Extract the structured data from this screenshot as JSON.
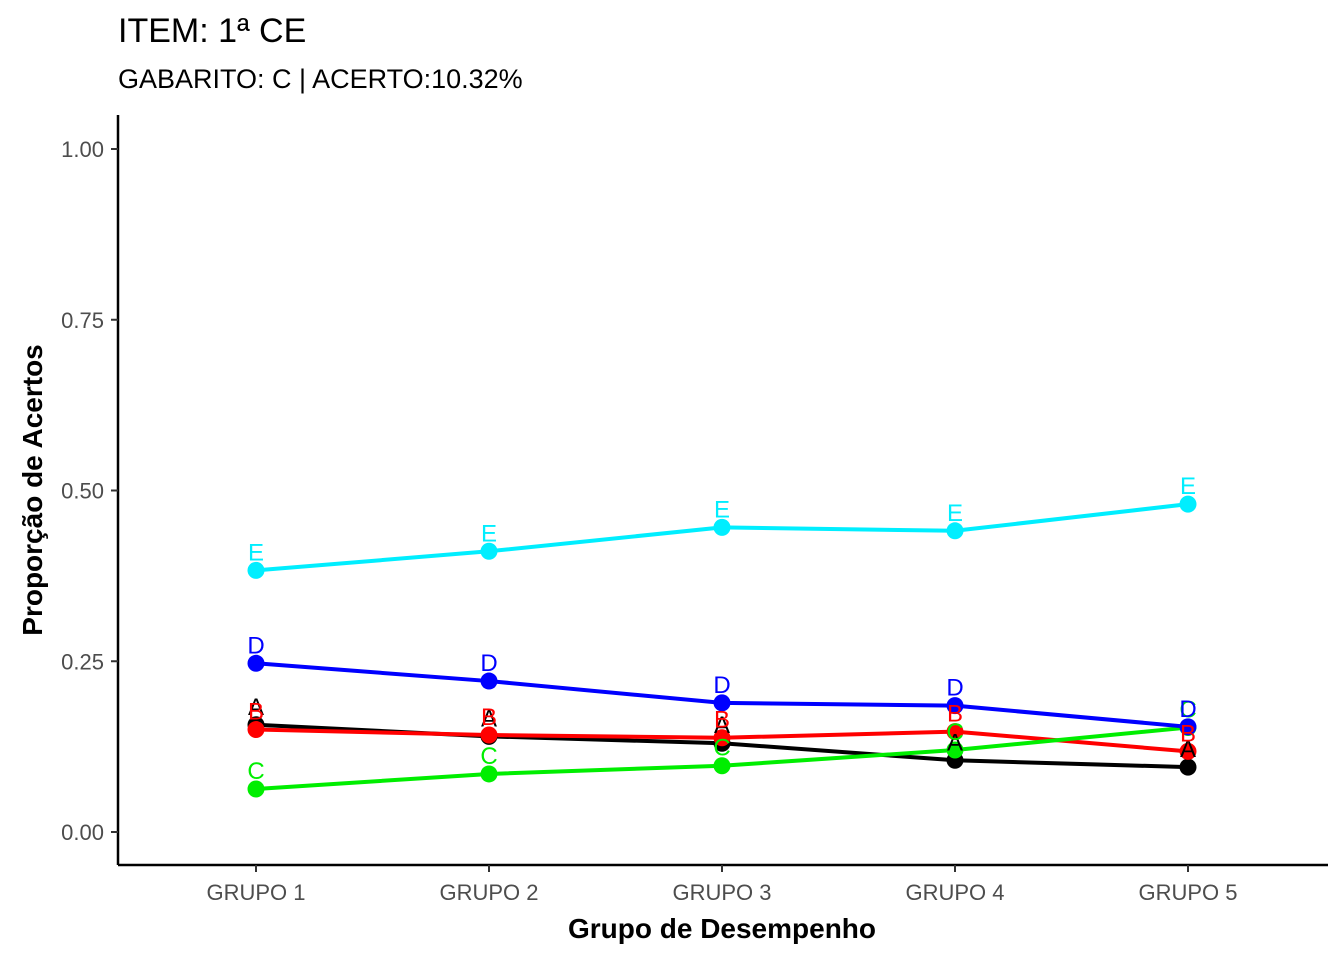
{
  "chart_data": {
    "type": "line",
    "title": "ITEM: 1ª CE",
    "subtitle": "GABARITO: C | ACERTO:10.32%",
    "xlabel": "Grupo de Desempenho",
    "ylabel": "Proporção de Acertos",
    "categories": [
      "GRUPO 1",
      "GRUPO 2",
      "GRUPO 3",
      "GRUPO 4",
      "GRUPO 5"
    ],
    "ylim": [
      0,
      1
    ],
    "yticks": [
      "0.00",
      "0.25",
      "0.50",
      "0.75",
      "1.00"
    ],
    "grid": false,
    "legend": "none",
    "series": [
      {
        "name": "A",
        "color": "#000000",
        "values": [
          0.157,
          0.14,
          0.13,
          0.105,
          0.095
        ]
      },
      {
        "name": "B",
        "color": "#ff0000",
        "values": [
          0.15,
          0.142,
          0.138,
          0.147,
          0.118
        ]
      },
      {
        "name": "C",
        "color": "#00ee00",
        "values": [
          0.063,
          0.085,
          0.097,
          0.12,
          0.153
        ]
      },
      {
        "name": "D",
        "color": "#0000ff",
        "values": [
          0.247,
          0.221,
          0.189,
          0.185,
          0.154
        ]
      },
      {
        "name": "E",
        "color": "#00eeff",
        "values": [
          0.383,
          0.411,
          0.446,
          0.441,
          0.48
        ]
      }
    ]
  }
}
